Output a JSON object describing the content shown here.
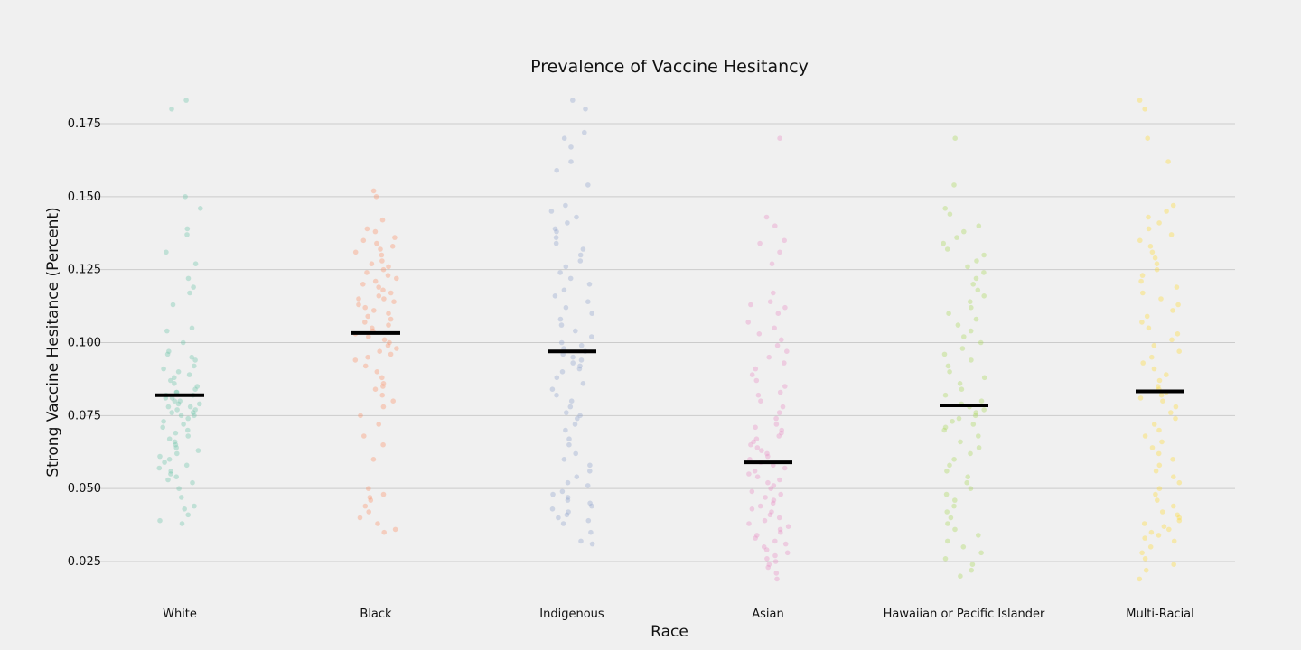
{
  "chart_data": {
    "type": "scatter",
    "title": "Prevalence of Vaccine Hesitancy",
    "xlabel": "Race",
    "ylabel": "Strong Vaccine Hesitance (Percent)",
    "ylim": [
      0.013,
      0.188
    ],
    "yticks": [
      0.025,
      0.05,
      0.075,
      0.1,
      0.125,
      0.15,
      0.175
    ],
    "ytick_labels": [
      "0.025",
      "0.050",
      "0.075",
      "0.100",
      "0.125",
      "0.150",
      "0.175"
    ],
    "grid": "horizontal",
    "categories": [
      "White",
      "Black",
      "Indigenous",
      "Asian",
      "Hawaiian or Pacific Islander",
      "Multi-Racial"
    ],
    "colors": [
      "#66c2a5",
      "#fc8d62",
      "#8da0cb",
      "#e78ac3",
      "#a6d854",
      "#ffd92f"
    ],
    "medians": [
      0.082,
      0.1033,
      0.097,
      0.059,
      0.0785,
      0.0833
    ],
    "series": [
      {
        "values": [
          0.183,
          0.18,
          0.15,
          0.146,
          0.139,
          0.137,
          0.131,
          0.127,
          0.122,
          0.119,
          0.117,
          0.113,
          0.105,
          0.104,
          0.1,
          0.097,
          0.096,
          0.095,
          0.094,
          0.092,
          0.091,
          0.09,
          0.089,
          0.088,
          0.087,
          0.086,
          0.085,
          0.084,
          0.083,
          0.083,
          0.082,
          0.082,
          0.081,
          0.081,
          0.08,
          0.08,
          0.079,
          0.079,
          0.078,
          0.078,
          0.077,
          0.077,
          0.076,
          0.076,
          0.075,
          0.075,
          0.074,
          0.073,
          0.072,
          0.071,
          0.07,
          0.069,
          0.068,
          0.067,
          0.066,
          0.065,
          0.064,
          0.063,
          0.062,
          0.061,
          0.06,
          0.059,
          0.058,
          0.057,
          0.056,
          0.055,
          0.054,
          0.053,
          0.052,
          0.05,
          0.047,
          0.044,
          0.043,
          0.041,
          0.039,
          0.038
        ]
      },
      {
        "values": [
          0.152,
          0.15,
          0.142,
          0.139,
          0.138,
          0.136,
          0.135,
          0.134,
          0.133,
          0.132,
          0.131,
          0.13,
          0.128,
          0.127,
          0.126,
          0.125,
          0.124,
          0.123,
          0.122,
          0.121,
          0.12,
          0.119,
          0.118,
          0.117,
          0.116,
          0.115,
          0.115,
          0.114,
          0.113,
          0.112,
          0.111,
          0.11,
          0.109,
          0.108,
          0.107,
          0.106,
          0.105,
          0.104,
          0.103,
          0.102,
          0.101,
          0.1,
          0.099,
          0.098,
          0.097,
          0.096,
          0.095,
          0.094,
          0.092,
          0.09,
          0.088,
          0.086,
          0.085,
          0.084,
          0.082,
          0.08,
          0.078,
          0.075,
          0.072,
          0.068,
          0.065,
          0.06,
          0.05,
          0.048,
          0.047,
          0.046,
          0.044,
          0.042,
          0.04,
          0.038,
          0.036,
          0.035
        ]
      },
      {
        "values": [
          0.183,
          0.18,
          0.172,
          0.17,
          0.167,
          0.162,
          0.159,
          0.154,
          0.147,
          0.145,
          0.143,
          0.141,
          0.139,
          0.138,
          0.136,
          0.134,
          0.132,
          0.13,
          0.128,
          0.126,
          0.124,
          0.122,
          0.12,
          0.118,
          0.116,
          0.114,
          0.112,
          0.11,
          0.108,
          0.106,
          0.104,
          0.102,
          0.1,
          0.099,
          0.098,
          0.097,
          0.096,
          0.095,
          0.094,
          0.093,
          0.092,
          0.091,
          0.09,
          0.088,
          0.086,
          0.084,
          0.082,
          0.08,
          0.078,
          0.076,
          0.075,
          0.074,
          0.072,
          0.07,
          0.067,
          0.065,
          0.062,
          0.06,
          0.058,
          0.056,
          0.054,
          0.052,
          0.051,
          0.049,
          0.048,
          0.047,
          0.046,
          0.045,
          0.044,
          0.043,
          0.042,
          0.041,
          0.04,
          0.039,
          0.038,
          0.035,
          0.032,
          0.031
        ]
      },
      {
        "values": [
          0.17,
          0.143,
          0.14,
          0.135,
          0.134,
          0.131,
          0.127,
          0.117,
          0.114,
          0.113,
          0.112,
          0.11,
          0.107,
          0.105,
          0.103,
          0.101,
          0.099,
          0.097,
          0.095,
          0.093,
          0.091,
          0.089,
          0.087,
          0.085,
          0.083,
          0.082,
          0.08,
          0.078,
          0.076,
          0.074,
          0.072,
          0.071,
          0.07,
          0.069,
          0.068,
          0.067,
          0.066,
          0.065,
          0.064,
          0.063,
          0.062,
          0.061,
          0.06,
          0.059,
          0.058,
          0.057,
          0.056,
          0.055,
          0.054,
          0.053,
          0.052,
          0.051,
          0.05,
          0.049,
          0.048,
          0.047,
          0.046,
          0.045,
          0.044,
          0.043,
          0.042,
          0.041,
          0.04,
          0.039,
          0.038,
          0.037,
          0.036,
          0.035,
          0.034,
          0.033,
          0.032,
          0.031,
          0.03,
          0.029,
          0.028,
          0.027,
          0.026,
          0.025,
          0.024,
          0.023,
          0.021,
          0.019
        ]
      },
      {
        "values": [
          0.17,
          0.154,
          0.146,
          0.144,
          0.14,
          0.138,
          0.136,
          0.134,
          0.132,
          0.13,
          0.128,
          0.126,
          0.124,
          0.122,
          0.12,
          0.118,
          0.116,
          0.114,
          0.112,
          0.11,
          0.108,
          0.106,
          0.104,
          0.102,
          0.1,
          0.098,
          0.096,
          0.094,
          0.092,
          0.09,
          0.088,
          0.086,
          0.084,
          0.082,
          0.08,
          0.079,
          0.078,
          0.077,
          0.076,
          0.075,
          0.074,
          0.073,
          0.072,
          0.071,
          0.07,
          0.068,
          0.066,
          0.064,
          0.062,
          0.06,
          0.058,
          0.056,
          0.054,
          0.052,
          0.05,
          0.048,
          0.046,
          0.044,
          0.042,
          0.04,
          0.038,
          0.036,
          0.034,
          0.032,
          0.03,
          0.028,
          0.026,
          0.024,
          0.022,
          0.02
        ]
      },
      {
        "values": [
          0.183,
          0.18,
          0.17,
          0.162,
          0.147,
          0.145,
          0.143,
          0.141,
          0.139,
          0.137,
          0.135,
          0.133,
          0.131,
          0.129,
          0.127,
          0.125,
          0.123,
          0.121,
          0.119,
          0.117,
          0.115,
          0.113,
          0.111,
          0.109,
          0.107,
          0.105,
          0.103,
          0.101,
          0.099,
          0.097,
          0.095,
          0.093,
          0.091,
          0.089,
          0.087,
          0.085,
          0.084,
          0.083,
          0.082,
          0.081,
          0.08,
          0.078,
          0.076,
          0.074,
          0.072,
          0.07,
          0.068,
          0.066,
          0.064,
          0.062,
          0.06,
          0.058,
          0.056,
          0.054,
          0.052,
          0.05,
          0.048,
          0.046,
          0.044,
          0.042,
          0.041,
          0.04,
          0.039,
          0.038,
          0.037,
          0.036,
          0.035,
          0.034,
          0.033,
          0.032,
          0.03,
          0.028,
          0.026,
          0.024,
          0.022,
          0.019
        ]
      }
    ]
  }
}
